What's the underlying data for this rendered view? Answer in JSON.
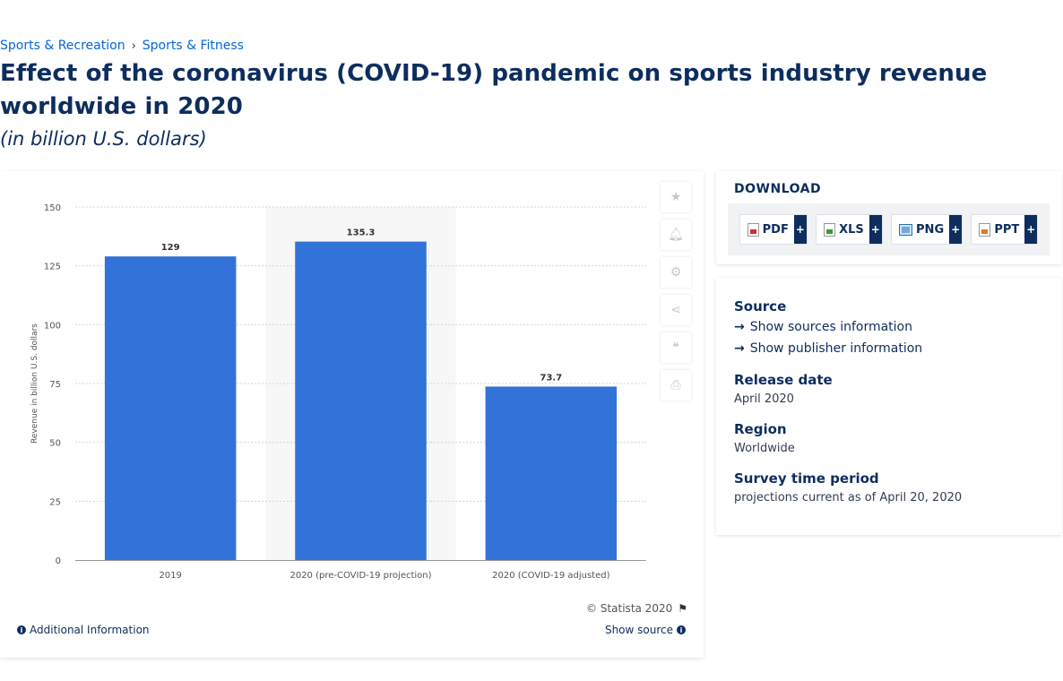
{
  "breadcrumb": {
    "items": [
      "Sports & Recreation",
      "Sports & Fitness"
    ],
    "separator": "›"
  },
  "title": "Effect of the coronavirus (COVID-19) pandemic on sports industry revenue worldwide in 2020",
  "subtitle": "(in billion U.S. dollars)",
  "chart_data": {
    "type": "bar",
    "categories": [
      "2019",
      "2020 (pre-COVID-19 projection)",
      "2020 (COVID-19 adjusted)"
    ],
    "values": [
      129,
      135.3,
      73.7
    ],
    "value_labels": [
      "129",
      "135.3",
      "73.7"
    ],
    "ylabel": "Revenue in billion U.S. dollars",
    "ylim": [
      0,
      150
    ],
    "yticks": [
      0,
      25,
      50,
      75,
      100,
      125,
      150
    ],
    "highlighted_category": "2020 (pre-COVID-19 projection)",
    "bar_color": "#3173d8",
    "grid": true,
    "gridline_style": "dotted"
  },
  "chart_footer": {
    "copyright": "© Statista 2020",
    "additional_info": "Additional Information",
    "show_source": "Show source"
  },
  "side_tools": [
    "star-icon",
    "bell-icon",
    "gear-icon",
    "share-icon",
    "quote-icon",
    "print-icon"
  ],
  "download": {
    "title": "DOWNLOAD",
    "buttons": [
      {
        "label": "PDF",
        "icon": "pdf-file-icon"
      },
      {
        "label": "XLS",
        "icon": "xls-file-icon"
      },
      {
        "label": "PNG",
        "icon": "png-file-icon"
      },
      {
        "label": "PPT",
        "icon": "ppt-file-icon"
      }
    ],
    "plus": "+"
  },
  "details": {
    "source_heading": "Source",
    "show_sources": "Show sources information",
    "show_publisher": "Show publisher information",
    "release_date_heading": "Release date",
    "release_date": "April 2020",
    "region_heading": "Region",
    "region": "Worldwide",
    "survey_heading": "Survey time period",
    "survey": "projections current as of April 20, 2020"
  }
}
